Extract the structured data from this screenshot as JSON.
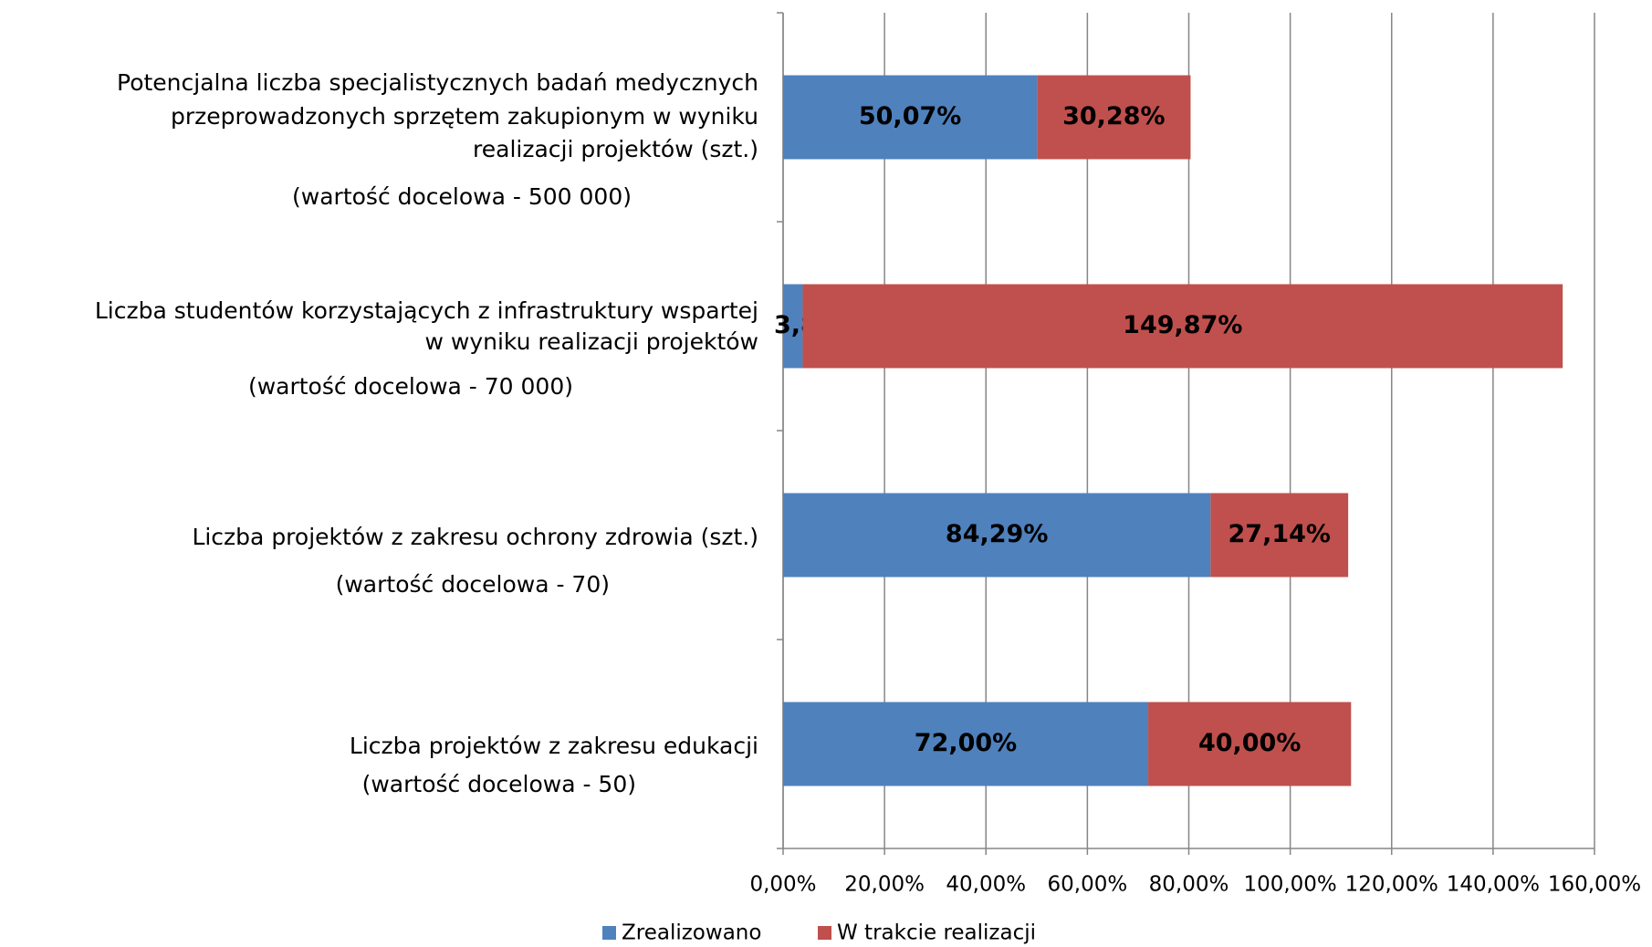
{
  "chart_data": {
    "type": "stacked-bar-horizontal",
    "categories": [
      [
        "Potencjalna liczba specjalistycznych badań medycznych",
        "przeprowadzonych sprzętem zakupionym w wyniku",
        "realizacji projektów (szt.)",
        "(wartość docelowa - 500 000)"
      ],
      [
        "Liczba studentów korzystających z infrastruktury wspartej",
        "w wyniku realizacji projektów",
        "(wartość docelowa - 70 000)"
      ],
      [
        "Liczba projektów z zakresu ochrony zdrowia (szt.)",
        "(wartość docelowa - 70)"
      ],
      [
        "Liczba projektów z zakresu edukacji",
        "(wartość docelowa - 50)"
      ]
    ],
    "series": [
      {
        "name": "Zrealizowano",
        "color": "#4f81bd",
        "values": [
          50.07,
          3.86,
          84.29,
          72.0
        ],
        "value_labels": [
          "50,07%",
          "3,86%",
          "84,29%",
          "72,00%"
        ]
      },
      {
        "name": "W trakcie realizacji",
        "color": "#c0504d",
        "values": [
          30.28,
          149.87,
          27.14,
          40.0
        ],
        "value_labels": [
          "30,28%",
          "149,87%",
          "27,14%",
          "40,00%"
        ]
      }
    ],
    "xlim": [
      0,
      160
    ],
    "xticks": [
      {
        "value": 0,
        "label": "0,00%"
      },
      {
        "value": 20,
        "label": "20,00%"
      },
      {
        "value": 40,
        "label": "40,00%"
      },
      {
        "value": 60,
        "label": "60,00%"
      },
      {
        "value": 80,
        "label": "80,00%"
      },
      {
        "value": 100,
        "label": "100,00%"
      },
      {
        "value": 120,
        "label": "120,00%"
      },
      {
        "value": 140,
        "label": "140,00%"
      },
      {
        "value": 160,
        "label": "160,00%"
      }
    ],
    "grid": true,
    "legend": "bottom"
  }
}
